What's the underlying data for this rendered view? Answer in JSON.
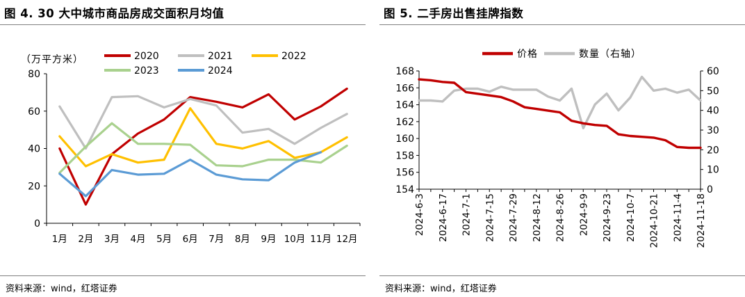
{
  "chart_data": [
    {
      "type": "line",
      "title": "图 4. 30 大中城市商品房成交面积月均值",
      "unit_label": "（万平方米）",
      "categories": [
        "1月",
        "2月",
        "3月",
        "4月",
        "5月",
        "6月",
        "7月",
        "8月",
        "9月",
        "10月",
        "11月",
        "12月"
      ],
      "yticks": [
        "0",
        "20",
        "40",
        "60",
        "80"
      ],
      "ylim": [
        0,
        80
      ],
      "series": [
        {
          "name": "2020",
          "color": "#c00000",
          "values": [
            40,
            10,
            37,
            48,
            55.5,
            67.5,
            65,
            62,
            69,
            55.5,
            62.5,
            72
          ]
        },
        {
          "name": "2021",
          "color": "#bfbfbf",
          "values": [
            62.5,
            40,
            67.5,
            68,
            62,
            66.5,
            63,
            48.5,
            50.5,
            42.5,
            51,
            58.5
          ]
        },
        {
          "name": "2022",
          "color": "#ffc000",
          "values": [
            46.5,
            30.5,
            37,
            32.5,
            34,
            61.5,
            42.5,
            40,
            44,
            35,
            38,
            46
          ]
        },
        {
          "name": "2023",
          "color": "#a9d18e",
          "values": [
            27,
            41,
            53.5,
            42.5,
            42.5,
            42,
            31,
            30.5,
            34,
            34,
            32.5,
            41.5
          ]
        },
        {
          "name": "2024",
          "color": "#5b9bd5",
          "values": [
            26.5,
            14.5,
            28.5,
            26,
            26.5,
            34,
            26,
            23.5,
            23,
            32.5,
            38,
            null
          ]
        }
      ],
      "source": "资料来源：wind，红塔证券"
    },
    {
      "type": "line",
      "title": "图 5. 二手房出售挂牌指数",
      "dual_axis": true,
      "x": [
        "2024-6-3",
        "2024-6-10",
        "2024-6-17",
        "2024-6-24",
        "2024-7-1",
        "2024-7-8",
        "2024-7-15",
        "2024-7-22",
        "2024-7-29",
        "2024-8-5",
        "2024-8-12",
        "2024-8-19",
        "2024-8-26",
        "2024-9-2",
        "2024-9-9",
        "2024-9-16",
        "2024-9-23",
        "2024-9-30",
        "2024-10-7",
        "2024-10-14",
        "2024-10-21",
        "2024-10-28",
        "2024-11-4",
        "2024-11-11",
        "2024-11-18"
      ],
      "xticks": [
        "2024-6-3",
        "2024-6-17",
        "2024-7-1",
        "2024-7-15",
        "2024-7-29",
        "2024-8-12",
        "2024-8-26",
        "2024-9-9",
        "2024-9-23",
        "2024-10-7",
        "2024-10-21",
        "2024-11-4",
        "2024-11-18"
      ],
      "yticks_left": [
        "154",
        "156",
        "158",
        "160",
        "162",
        "164",
        "166",
        "168"
      ],
      "ylim_left": [
        154,
        168
      ],
      "yticks_right": [
        "0",
        "10",
        "20",
        "30",
        "40",
        "50",
        "60"
      ],
      "ylim_right": [
        0,
        60
      ],
      "series": [
        {
          "name": "价格",
          "axis": "left",
          "color": "#c00000",
          "values": [
            167,
            166.9,
            166.7,
            166.6,
            165.5,
            165.3,
            165.1,
            164.9,
            164.4,
            163.7,
            163.5,
            163.3,
            163.1,
            162.1,
            161.8,
            161.6,
            161.5,
            160.5,
            160.3,
            160.2,
            160.1,
            159.8,
            159.0,
            158.9,
            158.9
          ]
        },
        {
          "name": "数量（右轴）",
          "axis": "right",
          "color": "#bfbfbf",
          "values": [
            45,
            45,
            44.5,
            50,
            51,
            51,
            49.5,
            52,
            50.5,
            50.5,
            50.5,
            47,
            45,
            51,
            31,
            43,
            48.5,
            40,
            46.5,
            57,
            50,
            51,
            49,
            50.5,
            45
          ]
        }
      ],
      "source": "资料来源：wind，红塔证券"
    }
  ]
}
